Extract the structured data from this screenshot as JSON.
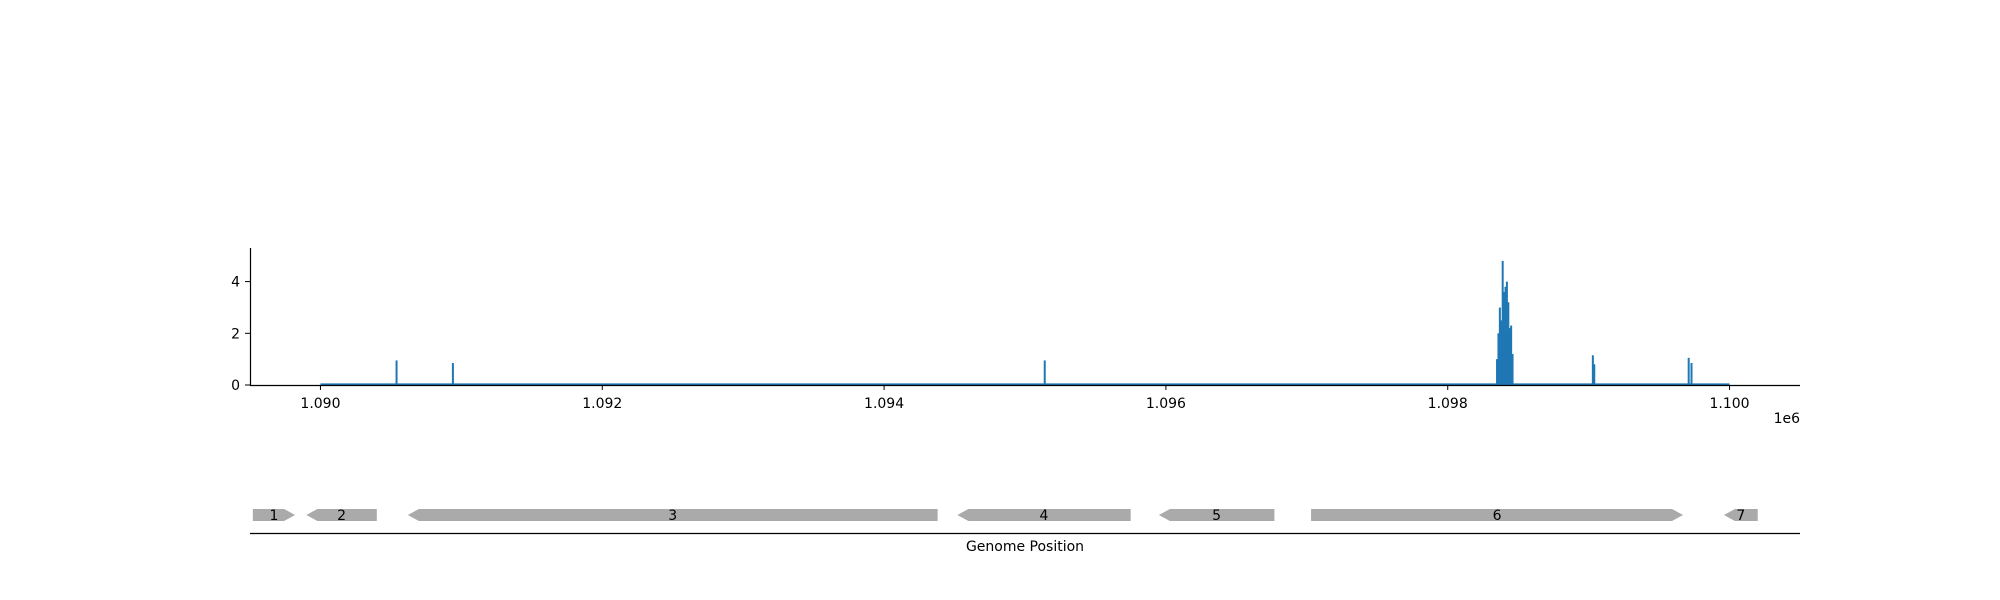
{
  "chart_data": [
    {
      "type": "bar",
      "title": "",
      "xlabel": "",
      "ylabel": "",
      "x_offset_label": "1e6",
      "xlim": [
        1089500,
        1100500
      ],
      "ylim": [
        0,
        5.3
      ],
      "x_ticks": [
        1090000,
        1092000,
        1094000,
        1096000,
        1098000,
        1100000
      ],
      "x_tick_labels": [
        "1.090",
        "1.092",
        "1.094",
        "1.096",
        "1.098",
        "1.100"
      ],
      "y_ticks": [
        0,
        2,
        4
      ],
      "y_tick_labels": [
        "0",
        "2",
        "4"
      ],
      "baseline_range": [
        1090000,
        1100000
      ],
      "series_color": "#1f77b4",
      "grid": false,
      "points": [
        {
          "x": 1090540,
          "y": 0.95
        },
        {
          "x": 1090940,
          "y": 0.85
        },
        {
          "x": 1095140,
          "y": 0.95
        },
        {
          "x": 1098350,
          "y": 1.0
        },
        {
          "x": 1098360,
          "y": 2.0
        },
        {
          "x": 1098370,
          "y": 3.0
        },
        {
          "x": 1098380,
          "y": 2.5
        },
        {
          "x": 1098390,
          "y": 4.8
        },
        {
          "x": 1098400,
          "y": 3.6
        },
        {
          "x": 1098410,
          "y": 3.8
        },
        {
          "x": 1098420,
          "y": 4.0
        },
        {
          "x": 1098430,
          "y": 3.2
        },
        {
          "x": 1098440,
          "y": 2.2
        },
        {
          "x": 1098450,
          "y": 2.3
        },
        {
          "x": 1098460,
          "y": 1.2
        },
        {
          "x": 1099030,
          "y": 1.15
        },
        {
          "x": 1099040,
          "y": 0.8
        },
        {
          "x": 1099710,
          "y": 1.05
        },
        {
          "x": 1099730,
          "y": 0.85
        }
      ]
    },
    {
      "type": "gene-track",
      "xlabel": "Genome Position",
      "feature_color": "#aaaaaa",
      "features": [
        {
          "label": "1",
          "start": 1089520,
          "end": 1089820,
          "strand": "+"
        },
        {
          "label": "2",
          "start": 1089900,
          "end": 1090400,
          "strand": "-"
        },
        {
          "label": "3",
          "start": 1090620,
          "end": 1094380,
          "strand": "-"
        },
        {
          "label": "4",
          "start": 1094520,
          "end": 1095750,
          "strand": "-"
        },
        {
          "label": "5",
          "start": 1095950,
          "end": 1096770,
          "strand": "-"
        },
        {
          "label": "6",
          "start": 1097030,
          "end": 1099670,
          "strand": "+"
        },
        {
          "label": "7",
          "start": 1099960,
          "end": 1100200,
          "strand": "-"
        }
      ]
    }
  ]
}
